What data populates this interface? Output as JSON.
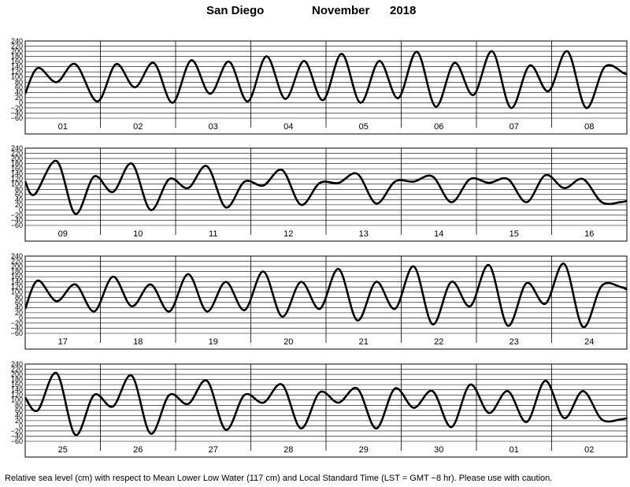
{
  "header": {
    "location": "San Diego",
    "month": "November",
    "year": "2018"
  },
  "footnote": "Relative sea level (cm) with respect to Mean Lower Low Water (117 cm) and Local Standard Time (LST = GMT −8 hr). Please use with caution.",
  "chart_data": {
    "type": "line",
    "title": "San Diego November 2018",
    "ylabel": "",
    "xlabel": "",
    "ylim": [
      -60,
      240
    ],
    "yticks": [
      240,
      220,
      200,
      180,
      160,
      140,
      120,
      100,
      80,
      60,
      40,
      20,
      0,
      -20,
      -40,
      -60
    ],
    "grid": true,
    "series_name": "",
    "color": "#000000",
    "panels": [
      {
        "days": [
          "01",
          "02",
          "03",
          "04",
          "05",
          "06",
          "07",
          "08"
        ],
        "x_hours": [
          0,
          4,
          10,
          16,
          23,
          29,
          35,
          41,
          47,
          53,
          59,
          65,
          71,
          77,
          83,
          89,
          95,
          101,
          107,
          113,
          119,
          125,
          131,
          137,
          143,
          149,
          155,
          161,
          167,
          173,
          179,
          185,
          191,
          192
        ],
        "values": [
          35,
          135,
          80,
          150,
          5,
          150,
          60,
          155,
          0,
          165,
          35,
          160,
          5,
          180,
          15,
          162,
          10,
          190,
          0,
          162,
          18,
          198,
          -15,
          155,
          30,
          200,
          -20,
          145,
          45,
          200,
          -20,
          140,
          115,
          110
        ]
      },
      {
        "days": [
          "09",
          "10",
          "11",
          "12",
          "13",
          "14",
          "15",
          "16"
        ],
        "x_hours": [
          0,
          3,
          10,
          16,
          22,
          28,
          34,
          40,
          46,
          52,
          58,
          64,
          70,
          76,
          82,
          88,
          94,
          100,
          106,
          112,
          118,
          124,
          130,
          136,
          142,
          148,
          154,
          160,
          166,
          172,
          178,
          184,
          190,
          192
        ],
        "values": [
          110,
          60,
          190,
          -15,
          130,
          70,
          180,
          0,
          120,
          85,
          170,
          10,
          110,
          95,
          155,
          20,
          105,
          105,
          140,
          25,
          110,
          110,
          130,
          30,
          120,
          105,
          120,
          30,
          135,
          85,
          120,
          30,
          30,
          35
        ]
      },
      {
        "days": [
          "17",
          "18",
          "19",
          "20",
          "21",
          "22",
          "23",
          "24"
        ],
        "x_hours": [
          0,
          4,
          10,
          16,
          22,
          28,
          34,
          40,
          46,
          52,
          58,
          64,
          70,
          76,
          82,
          88,
          94,
          100,
          106,
          112,
          118,
          124,
          130,
          136,
          142,
          148,
          154,
          160,
          166,
          172,
          178,
          184,
          190,
          192
        ],
        "values": [
          35,
          145,
          65,
          130,
          25,
          160,
          45,
          130,
          25,
          170,
          25,
          140,
          30,
          180,
          5,
          140,
          35,
          190,
          -10,
          140,
          35,
          200,
          -25,
          140,
          45,
          205,
          -30,
          135,
          55,
          210,
          -35,
          125,
          120,
          110
        ]
      },
      {
        "days": [
          "25",
          "26",
          "27",
          "28",
          "29",
          "30",
          "01",
          "02"
        ],
        "x_hours": [
          0,
          4,
          10,
          16,
          22,
          28,
          34,
          40,
          46,
          52,
          58,
          64,
          70,
          76,
          82,
          88,
          94,
          100,
          106,
          112,
          118,
          124,
          130,
          136,
          142,
          148,
          154,
          160,
          166,
          172,
          178,
          184,
          190,
          192
        ],
        "values": [
          110,
          60,
          205,
          -35,
          120,
          75,
          195,
          -30,
          120,
          85,
          175,
          -15,
          120,
          90,
          160,
          -10,
          130,
          90,
          145,
          -10,
          145,
          70,
          135,
          -5,
          160,
          50,
          135,
          15,
          175,
          30,
          135,
          25,
          25,
          30
        ]
      }
    ]
  }
}
